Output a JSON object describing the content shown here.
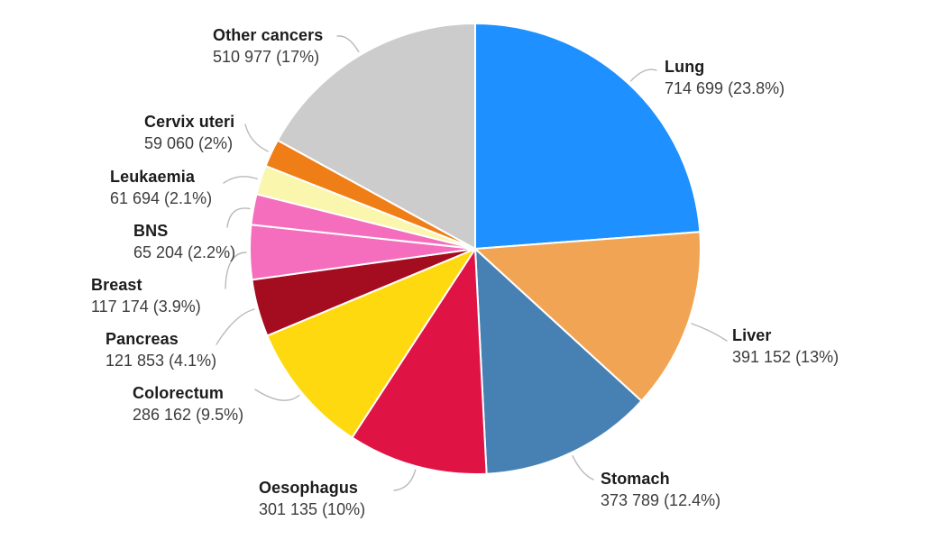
{
  "chart_data": {
    "type": "pie",
    "direction": "clockwise",
    "start_angle": "12 o'clock",
    "legend_position": "none",
    "labels_outside": true,
    "divider_color": "#ffffff",
    "leader_line_color": "#b9b9b9",
    "slices": [
      {
        "label": "Lung",
        "value": 714699,
        "value_text": "714 699 (23.8%)",
        "percent": 23.8,
        "color": "#1E90FF"
      },
      {
        "label": "Liver",
        "value": 391152,
        "value_text": "391 152 (13%)",
        "percent": 13.0,
        "color": "#F2A455"
      },
      {
        "label": "Stomach",
        "value": 373789,
        "value_text": "373 789 (12.4%)",
        "percent": 12.4,
        "color": "#4781B4"
      },
      {
        "label": "Oesophagus",
        "value": 301135,
        "value_text": "301 135 (10%)",
        "percent": 10.0,
        "color": "#E01345"
      },
      {
        "label": "Colorectum",
        "value": 286162,
        "value_text": "286 162 (9.5%)",
        "percent": 9.5,
        "color": "#FFD90F"
      },
      {
        "label": "Pancreas",
        "value": 121853,
        "value_text": "121 853 (4.1%)",
        "percent": 4.1,
        "color": "#A40C1F"
      },
      {
        "label": "Breast",
        "value": 117174,
        "value_text": "117 174 (3.9%)",
        "percent": 3.9,
        "color": "#F56EBE"
      },
      {
        "label": "BNS",
        "value": 65204,
        "value_text": "65 204 (2.2%)",
        "percent": 2.2,
        "color": "#F56EBE"
      },
      {
        "label": "Leukaemia",
        "value": 61694,
        "value_text": "61 694 (2.1%)",
        "percent": 2.1,
        "color": "#FAF6AE"
      },
      {
        "label": "Cervix uteri",
        "value": 59060,
        "value_text": "59 060 (2%)",
        "percent": 2.0,
        "color": "#F07E16"
      },
      {
        "label": "Other cancers",
        "value": 510977,
        "value_text": "510 977 (17%)",
        "percent": 17.0,
        "color": "#CCCCCC"
      }
    ]
  }
}
